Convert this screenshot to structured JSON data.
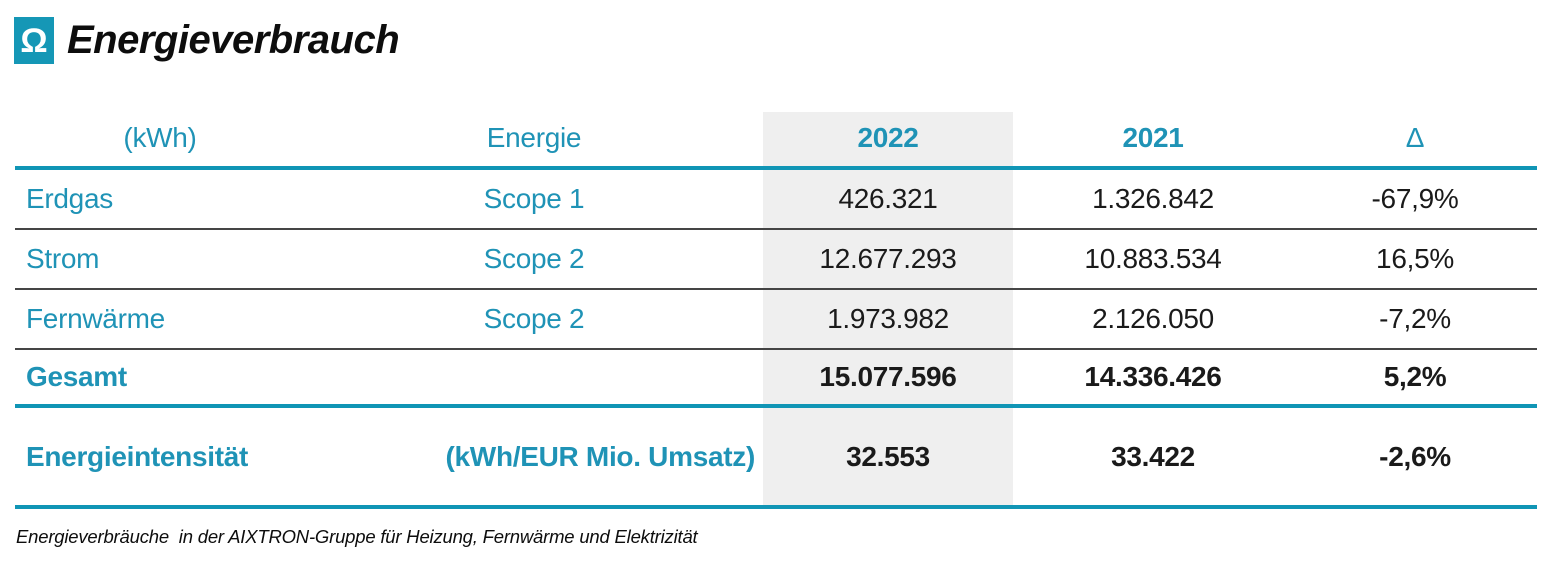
{
  "colors": {
    "teal_line": "#1095b5",
    "teal_text": "#1f93b6",
    "icon_background": "#1597b6",
    "column_highlight": "#efefef",
    "row_divider": "#454545",
    "number_text": "#1a1a1a"
  },
  "header": {
    "icon_glyph": "Ω",
    "title": "Energieverbrauch"
  },
  "table": {
    "columns": [
      "(kWh)",
      "Energie",
      "2022",
      "2021",
      "Δ"
    ],
    "rows": [
      {
        "label": "Erdgas",
        "energie": "Scope 1",
        "y2022": "426.321",
        "y2021": "1.326.842",
        "delta": "-67,9%"
      },
      {
        "label": "Strom",
        "energie": "Scope 2",
        "y2022": "12.677.293",
        "y2021": "10.883.534",
        "delta": "16,5%"
      },
      {
        "label": "Fernwärme",
        "energie": "Scope 2",
        "y2022": "1.973.982",
        "y2021": "2.126.050",
        "delta": "-7,2%"
      },
      {
        "label": "Gesamt",
        "energie": "",
        "y2022": "15.077.596",
        "y2021": "14.336.426",
        "delta": "5,2%"
      },
      {
        "label": "Energieintensität",
        "energie": "(kWh/EUR Mio. Umsatz)",
        "y2022": "32.553",
        "y2021": "33.422",
        "delta": "-2,6%"
      }
    ]
  },
  "caption": "Energieverbräuche  in der AIXTRON-Gruppe für Heizung, Fernwärme und Elektrizität"
}
